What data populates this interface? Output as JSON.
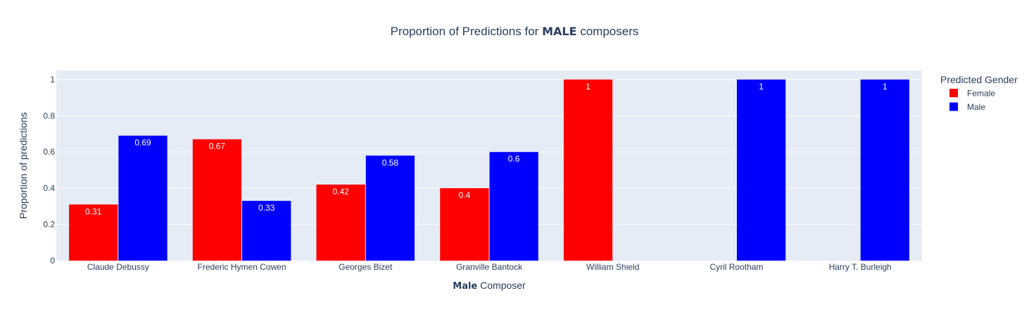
{
  "chart_data": {
    "type": "bar",
    "title_prefix": "Proportion of Predictions for ",
    "title_strong": "MALE",
    "title_suffix": " composers",
    "xlabel_strong": "Male",
    "xlabel_rest": " Composer",
    "ylabel": "Proportion of predictions",
    "ylim": [
      0,
      1.05
    ],
    "yticks": [
      0,
      0.2,
      0.4,
      0.6,
      0.8,
      1
    ],
    "ytick_labels": [
      "0",
      "0.2",
      "0.4",
      "0.6",
      "0.8",
      "1"
    ],
    "grid": true,
    "categories": [
      "Claude Debussy",
      "Frederic Hymen Cowen",
      "Georges Bizet",
      "Granville Bantock",
      "William Shield",
      "Cyril Rootham",
      "Harry T. Burleigh"
    ],
    "series": [
      {
        "name": "Female",
        "color": "#ff0000",
        "values": [
          0.31,
          0.67,
          0.42,
          0.4,
          1,
          null,
          null
        ],
        "labels": [
          "0.31",
          "0.67",
          "0.42",
          "0.4",
          "1",
          "",
          ""
        ]
      },
      {
        "name": "Male",
        "color": "#0000ff",
        "values": [
          0.69,
          0.33,
          0.58,
          0.6,
          null,
          1,
          1
        ],
        "labels": [
          "0.69",
          "0.33",
          "0.58",
          "0.6",
          "",
          "1",
          "1"
        ]
      }
    ],
    "legend_title": "Predicted Gender",
    "legend_position": "right",
    "plot_background": "#e5ecf6"
  }
}
